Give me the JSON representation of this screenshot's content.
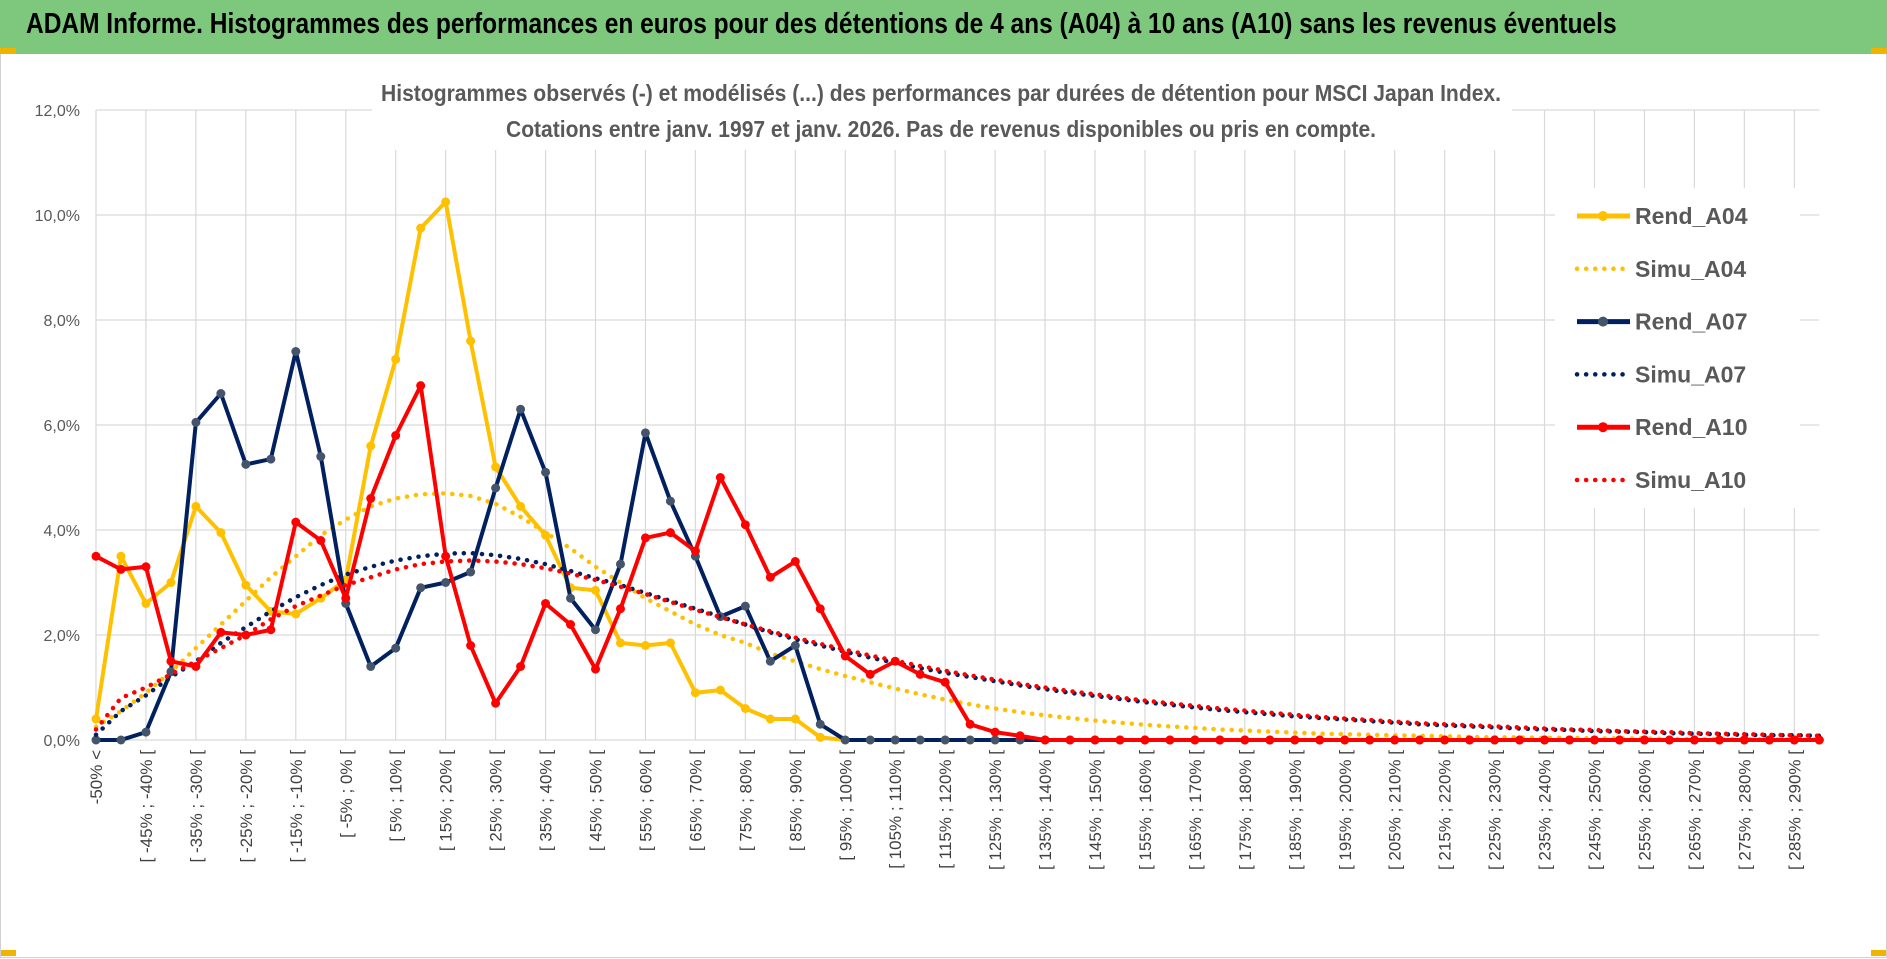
{
  "banner": {
    "title": "ADAM Informe. Histogrammes des performances en euros pour des détentions de 4 ans (A04) à 10 ans (A10) sans les revenus éventuels",
    "bg_color": "#7dc87d",
    "corner_color": "#f0b400"
  },
  "chart_data": {
    "type": "line",
    "title_line1": "Histogrammes observés (-) et modélisés (...) des performances par durées de détention pour MSCI Japan Index.",
    "title_line2": "Cotations entre janv. 1997 et janv. 2026. Pas de revenus disponibles ou pris en compte.",
    "xlabel": "",
    "ylabel": "",
    "ylim": [
      0,
      12
    ],
    "yticks": [
      "0,0%",
      "2,0%",
      "4,0%",
      "6,0%",
      "8,0%",
      "10,0%",
      "12,0%"
    ],
    "grid": true,
    "legend_position": "right",
    "categories": [
      "-50% <",
      "[ -50% ; -45% [",
      "[ -45% ; -40% [",
      "[ -40% ; -35% [",
      "[ -35% ; -30% [",
      "[ -30% ; -25% [",
      "[ -25% ; -20% [",
      "[ -20% ; -15% [",
      "[ -15% ; -10% [",
      "[ -10% ; -5% [",
      "[ -5% ; 0% [",
      "[ 0% ; 5% [",
      "[ 5% ; 10% [",
      "[ 10% ; 15% [",
      "[ 15% ; 20% [",
      "[ 20% ; 25% [",
      "[ 25% ; 30% [",
      "[ 30% ; 35% [",
      "[ 35% ; 40% [",
      "[ 40% ; 45% [",
      "[ 45% ; 50% [",
      "[ 50% ; 55% [",
      "[ 55% ; 60% [",
      "[ 60% ; 65% [",
      "[ 65% ; 70% [",
      "[ 70% ; 75% [",
      "[ 75% ; 80% [",
      "[ 80% ; 85% [",
      "[ 85% ; 90% [",
      "[ 90% ; 95% [",
      "[ 95% ; 100% [",
      "[ 100% ; 105% [",
      "[ 105% ; 110% [",
      "[ 110% ; 115% [",
      "[ 115% ; 120% [",
      "[ 120% ; 125% [",
      "[ 125% ; 130% [",
      "[ 130% ; 135% [",
      "[ 135% ; 140% [",
      "[ 140% ; 145% [",
      "[ 145% ; 150% [",
      "[ 150% ; 155% [",
      "[ 155% ; 160% [",
      "[ 160% ; 165% [",
      "[ 165% ; 170% [",
      "[ 170% ; 175% [",
      "[ 175% ; 180% [",
      "[ 180% ; 185% [",
      "[ 185% ; 190% [",
      "[ 190% ; 195% [",
      "[ 195% ; 200% [",
      "[ 200% ; 205% [",
      "[ 205% ; 210% [",
      "[ 210% ; 215% [",
      "[ 215% ; 220% [",
      "[ 220% ; 225% [",
      "[ 225% ; 230% [",
      "[ 230% ; 235% [",
      "[ 235% ; 240% [",
      "[ 240% ; 245% [",
      "[ 245% ; 250% [",
      "[ 250% ; 255% [",
      "[ 255% ; 260% [",
      "[ 260% ; 265% [",
      "[ 265% ; 270% [",
      "[ 270% ; 275% [",
      "[ 275% ; 280% [",
      "[ 280% ; 285% [",
      "[ 285% ; 290% [",
      "[ 290% ; 295% ["
    ],
    "visible_x_labels": [
      "-50% <",
      "[ -45% ; -40% [",
      "[ -35% ; -30% [",
      "[ -25% ; -20% [",
      "[ -15% ; -10% [",
      "[ -5% ; 0% [",
      "[ 5% ; 10% [",
      "[ 15% ; 20% [",
      "[ 25% ; 30% [",
      "[ 35% ; 40% [",
      "[ 45% ; 50% [",
      "[ 55% ; 60% [",
      "[ 65% ; 70% [",
      "[ 75% ; 80% [",
      "[ 85% ; 90% [",
      "[ 95% ; 100% [",
      "[ 105% ; 110% [",
      "[ 115% ; 120% [",
      "[ 125% ; 130% [",
      "[ 135% ; 140% [",
      "[ 145% ; 150% [",
      "[ 155% ; 160% [",
      "[ 165% ; 170% [",
      "[ 175% ; 180% [",
      "[ 185% ; 190% [",
      "[ 195% ; 200% [",
      "[ 205% ; 210% [",
      "[ 215% ; 220% [",
      "[ 225% ; 230% [",
      "[ 235% ; 240% [",
      "[ 245% ; 250% [",
      "[ 255% ; 260% [",
      "[ 265% ; 270% [",
      "[ 275% ; 280% [",
      "[ 285% ; 290% ["
    ],
    "series": [
      {
        "name": "Rend_A04",
        "style": "solid",
        "color": "#ffc000",
        "values": [
          0.4,
          3.5,
          2.6,
          3.0,
          4.45,
          3.95,
          2.95,
          2.45,
          2.4,
          2.7,
          3.05,
          5.6,
          7.25,
          9.75,
          10.25,
          7.6,
          5.2,
          4.45,
          3.9,
          2.9,
          2.85,
          1.85,
          1.8,
          1.85,
          0.9,
          0.95,
          0.6,
          0.4,
          0.4,
          0.05,
          0,
          0,
          0,
          0,
          0,
          0,
          0,
          0,
          0,
          0,
          0,
          0,
          0,
          0,
          0,
          0,
          0,
          0,
          0,
          0,
          0,
          0,
          0,
          0,
          0,
          0,
          0,
          0,
          0,
          0,
          0,
          0,
          0,
          0,
          0,
          0,
          0,
          0,
          0,
          0
        ]
      },
      {
        "name": "Simu_A04",
        "style": "dotted",
        "color": "#ffc000",
        "values": [
          0.25,
          0.55,
          0.9,
          1.3,
          1.75,
          2.2,
          2.65,
          3.1,
          3.5,
          3.9,
          4.2,
          4.45,
          4.6,
          4.68,
          4.7,
          4.65,
          4.5,
          4.25,
          3.95,
          3.65,
          3.3,
          3.0,
          2.7,
          2.45,
          2.2,
          2.0,
          1.85,
          1.65,
          1.5,
          1.35,
          1.22,
          1.1,
          0.98,
          0.87,
          0.77,
          0.68,
          0.6,
          0.53,
          0.47,
          0.42,
          0.37,
          0.33,
          0.29,
          0.26,
          0.23,
          0.2,
          0.18,
          0.16,
          0.14,
          0.12,
          0.11,
          0.1,
          0.09,
          0.08,
          0.07,
          0.06,
          0.05,
          0.05,
          0.04,
          0.04,
          0.03,
          0.03,
          0.03,
          0.02,
          0.02,
          0.02,
          0.02,
          0.01,
          0.01,
          0.01
        ]
      },
      {
        "name": "Rend_A07",
        "style": "solid",
        "color": "#002060",
        "values": [
          0,
          0,
          0.15,
          1.3,
          6.05,
          6.6,
          5.25,
          5.35,
          7.4,
          5.4,
          2.6,
          1.4,
          1.75,
          2.9,
          3.0,
          3.2,
          4.8,
          6.3,
          5.1,
          2.7,
          2.1,
          3.35,
          5.85,
          4.55,
          3.5,
          2.35,
          2.55,
          1.5,
          1.8,
          0.3,
          0,
          0,
          0,
          0,
          0,
          0,
          0,
          0,
          0,
          0,
          0,
          0,
          0,
          0,
          0,
          0,
          0,
          0,
          0,
          0,
          0,
          0,
          0,
          0,
          0,
          0,
          0,
          0,
          0,
          0,
          0,
          0,
          0,
          0,
          0,
          0,
          0,
          0,
          0,
          0
        ]
      },
      {
        "name": "Simu_A07",
        "style": "dotted",
        "color": "#002060",
        "values": [
          0.1,
          0.55,
          0.85,
          1.2,
          1.5,
          1.85,
          2.15,
          2.45,
          2.72,
          2.95,
          3.15,
          3.3,
          3.42,
          3.5,
          3.55,
          3.56,
          3.52,
          3.45,
          3.35,
          3.22,
          3.08,
          2.95,
          2.8,
          2.65,
          2.5,
          2.35,
          2.2,
          2.05,
          1.92,
          1.8,
          1.68,
          1.57,
          1.47,
          1.37,
          1.28,
          1.2,
          1.12,
          1.04,
          0.97,
          0.9,
          0.84,
          0.78,
          0.72,
          0.67,
          0.62,
          0.57,
          0.53,
          0.49,
          0.45,
          0.42,
          0.39,
          0.36,
          0.33,
          0.3,
          0.28,
          0.26,
          0.24,
          0.22,
          0.2,
          0.19,
          0.17,
          0.16,
          0.15,
          0.13,
          0.12,
          0.11,
          0.1,
          0.09,
          0.09,
          0.08
        ]
      },
      {
        "name": "Rend_A10",
        "style": "solid",
        "color": "#ff0000",
        "values": [
          3.5,
          3.25,
          3.3,
          1.5,
          1.4,
          2.05,
          2.0,
          2.1,
          4.15,
          3.8,
          2.7,
          4.6,
          5.8,
          6.75,
          3.5,
          1.8,
          0.7,
          1.4,
          2.6,
          2.2,
          1.35,
          2.5,
          3.85,
          3.95,
          3.6,
          5.0,
          4.1,
          3.1,
          3.4,
          2.5,
          1.6,
          1.25,
          1.5,
          1.25,
          1.1,
          0.3,
          0.15,
          0.08,
          0,
          0,
          0,
          0,
          0,
          0,
          0,
          0,
          0,
          0,
          0,
          0,
          0,
          0,
          0,
          0,
          0,
          0,
          0,
          0,
          0,
          0,
          0,
          0,
          0,
          0,
          0,
          0,
          0,
          0,
          0,
          0
        ]
      },
      {
        "name": "Simu_A10",
        "style": "dotted",
        "color": "#ff0000",
        "values": [
          0.2,
          0.8,
          1.0,
          1.25,
          1.5,
          1.75,
          2.0,
          2.3,
          2.55,
          2.75,
          2.95,
          3.1,
          3.25,
          3.35,
          3.4,
          3.42,
          3.4,
          3.35,
          3.27,
          3.17,
          3.05,
          2.92,
          2.78,
          2.63,
          2.48,
          2.34,
          2.2,
          2.07,
          1.95,
          1.83,
          1.72,
          1.61,
          1.51,
          1.41,
          1.32,
          1.23,
          1.15,
          1.07,
          1.0,
          0.93,
          0.87,
          0.81,
          0.75,
          0.7,
          0.65,
          0.6,
          0.56,
          0.52,
          0.48,
          0.44,
          0.41,
          0.38,
          0.35,
          0.32,
          0.3,
          0.28,
          0.26,
          0.24,
          0.22,
          0.2,
          0.19,
          0.17,
          0.16,
          0.15,
          0.13,
          0.12,
          0.11,
          0.1,
          0.09,
          0.08
        ]
      }
    ]
  }
}
